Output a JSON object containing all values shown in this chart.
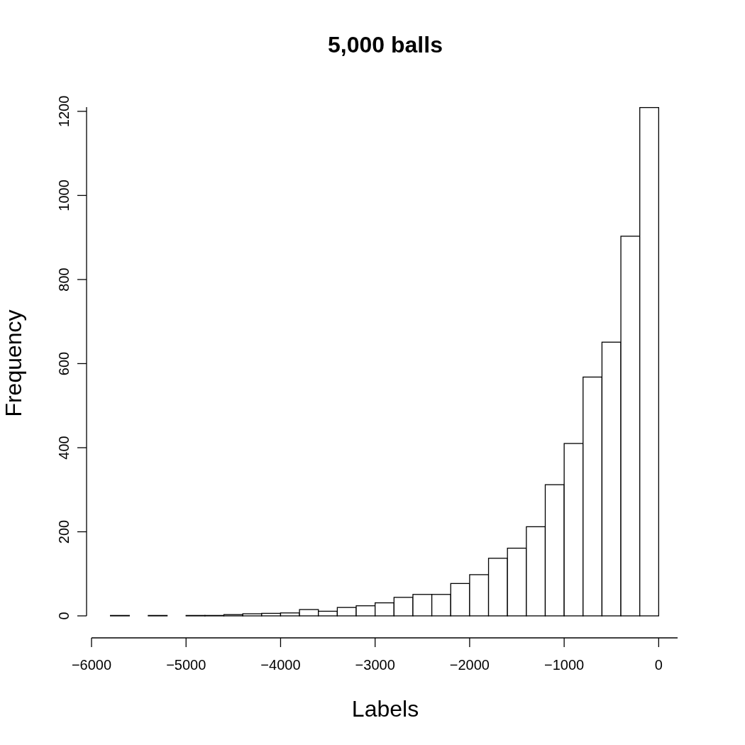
{
  "chart_data": {
    "type": "histogram",
    "title": "5,000 balls",
    "xlabel": "Labels",
    "ylabel": "Frequency",
    "bins": [
      -5800,
      -5600,
      -5400,
      -5200,
      -5000,
      -4800,
      -4600,
      -4400,
      -4200,
      -4000,
      -3800,
      -3600,
      -3400,
      -3200,
      -3000,
      -2800,
      -2600,
      -2400,
      -2200,
      -2000,
      -1800,
      -1600,
      -1400,
      -1200,
      -1000,
      -800,
      -600,
      -400,
      -200,
      0,
      200
    ],
    "values": [
      1,
      0,
      1,
      0,
      1,
      1,
      3,
      5,
      6,
      7,
      15,
      11,
      20,
      24,
      31,
      44,
      51,
      51,
      77,
      98,
      137,
      161,
      212,
      312,
      410,
      568,
      651,
      903,
      1209,
      0
    ],
    "color": "#ffffff",
    "xlim": [
      -6000,
      200
    ],
    "xticks": [
      -6000,
      -5000,
      -4000,
      -3000,
      -2000,
      -1000,
      0
    ],
    "ylim": [
      0,
      1210
    ],
    "yticks": [
      0,
      200,
      400,
      600,
      800,
      1000,
      1200
    ],
    "grid": false
  }
}
